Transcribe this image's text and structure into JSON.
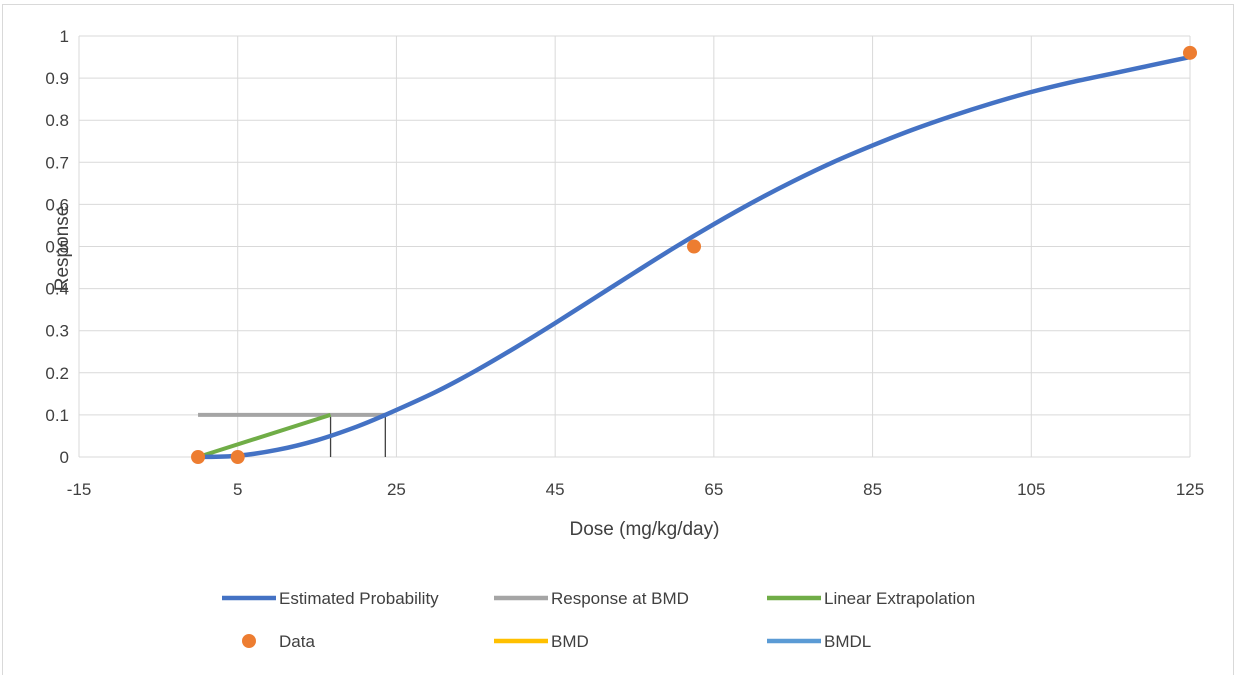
{
  "chart_data": {
    "type": "scatter",
    "xlabel": "Dose (mg/kg/day)",
    "ylabel": "Response",
    "xlim": [
      -15,
      125
    ],
    "ylim": [
      0,
      1
    ],
    "x_ticks": [
      -15,
      5,
      25,
      45,
      65,
      85,
      105,
      125
    ],
    "y_ticks": [
      0,
      0.1,
      0.2,
      0.3,
      0.4,
      0.5,
      0.6,
      0.7,
      0.8,
      0.9,
      1
    ],
    "grid": true,
    "legend_position": "bottom",
    "series": [
      {
        "name": "Estimated Probability",
        "kind": "line",
        "color": "#4472c4",
        "x": [
          0,
          5,
          10,
          15,
          20,
          23.6,
          30,
          35,
          40,
          45,
          50,
          55,
          60,
          65,
          70,
          75,
          80,
          85,
          90,
          95,
          100,
          105,
          110,
          115,
          120,
          125
        ],
        "y": [
          0,
          0.003,
          0.017,
          0.04,
          0.072,
          0.1,
          0.155,
          0.205,
          0.26,
          0.318,
          0.378,
          0.438,
          0.497,
          0.553,
          0.606,
          0.655,
          0.7,
          0.74,
          0.777,
          0.81,
          0.84,
          0.867,
          0.89,
          0.91,
          0.93,
          0.95
        ]
      },
      {
        "name": "Response at BMD",
        "kind": "line",
        "color": "#a5a5a5",
        "x": [
          0,
          23.6
        ],
        "y": [
          0.1,
          0.1
        ]
      },
      {
        "name": "Linear Extrapolation",
        "kind": "line",
        "color": "#70ad47",
        "x": [
          0,
          16.7
        ],
        "y": [
          0,
          0.1
        ]
      },
      {
        "name": "Data",
        "kind": "scatter",
        "color": "#ed7d31",
        "x": [
          0,
          5,
          62.5,
          125
        ],
        "y": [
          0,
          0,
          0.5,
          0.96
        ]
      },
      {
        "name": "BMD",
        "kind": "line",
        "color": "#ffc000",
        "x": [
          23.6,
          23.6
        ],
        "y": [
          0,
          0.1
        ]
      },
      {
        "name": "BMDL",
        "kind": "line",
        "color": "#5b9bd5",
        "x": [
          16.7,
          16.7
        ],
        "y": [
          0,
          0.1
        ]
      }
    ],
    "drop_line_color": "#404040"
  }
}
